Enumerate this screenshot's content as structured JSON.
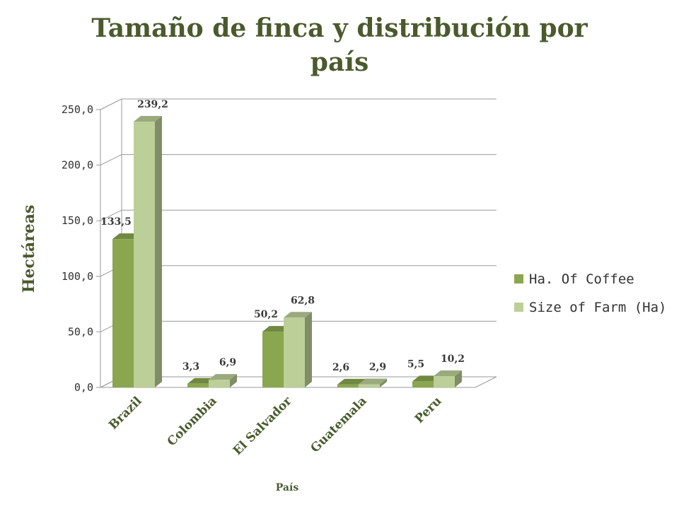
{
  "chart_data": {
    "type": "bar",
    "title": "Tamaño de finca y distribución por país",
    "title_lines": [
      "Tamaño de finca y distribución por",
      "país"
    ],
    "xlabel": "País",
    "ylabel": "Hectáreas",
    "categories": [
      "Brazil",
      "Colombia",
      "El Salvador",
      "Guatemala",
      "Peru"
    ],
    "series": [
      {
        "name": "Ha. Of Coffee",
        "values": [
          133.5,
          3.3,
          50.2,
          2.6,
          5.5
        ],
        "labels": [
          "133,5",
          "3,3",
          "50,2",
          "2,6",
          "5,5"
        ],
        "color": "#8aa64e"
      },
      {
        "name": "Size of Farm (Ha)",
        "values": [
          239.2,
          6.9,
          62.8,
          2.9,
          10.2
        ],
        "labels": [
          "239,2",
          "6,9",
          "62,8",
          "2,9",
          "10,2"
        ],
        "color": "#bccf98"
      }
    ],
    "ylim": [
      0,
      250
    ],
    "yticks": [
      0,
      50,
      100,
      150,
      200,
      250
    ],
    "ytick_labels": [
      "0,0",
      "50,0",
      "100,0",
      "150,0",
      "200,0",
      "250,0"
    ],
    "grid": true,
    "three_d": true,
    "legend": "right"
  }
}
